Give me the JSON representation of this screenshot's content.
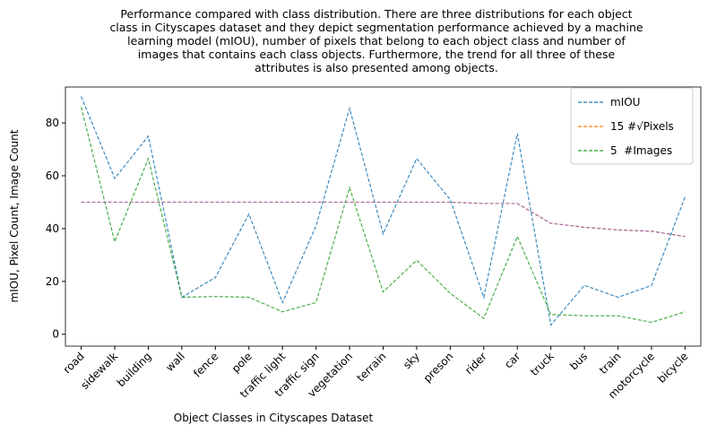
{
  "chart_data": {
    "type": "line",
    "title": [
      "Performance compared with class distribution. There are three distributions for each object",
      "class in Cityscapes dataset and they depict segmentation performance achieved by a machine",
      "learning model (mIOU), number of pixels that belong to each object class and number of",
      "images that contains each class objects. Furthermore, the trend for all three of these",
      "attributes is also presented among objects."
    ],
    "xlabel": "Object Classes in Cityscapes Dataset",
    "ylabel": "mIOU, Pixel Count, Image Count",
    "categories": [
      "road",
      "sidewalk",
      "building",
      "wall",
      "fence",
      "pole",
      "traffic light",
      "traffic sign",
      "vegetation",
      "terrain",
      "sky",
      "preson",
      "rider",
      "car",
      "truck",
      "bus",
      "train",
      "motorcycle",
      "bicycle"
    ],
    "series": [
      {
        "name": "mIOU",
        "color": "#1f77b4",
        "values": [
          90,
          59,
          75,
          14,
          21.5,
          45.5,
          12,
          41,
          85.5,
          38,
          66.5,
          51,
          14,
          76,
          3.5,
          18.5,
          14,
          18.5,
          52
        ]
      },
      {
        "name": "15 #√Pixels",
        "color": "#ff7f0e",
        "values": [
          50,
          50,
          50,
          50,
          50,
          50,
          50,
          50,
          50,
          50,
          50,
          50,
          49.5,
          49.5,
          42,
          40.5,
          39.5,
          39,
          37
        ]
      },
      {
        "name": "5  #Images",
        "color": "#2ca02c",
        "values": [
          86,
          35,
          66.5,
          14,
          14.3,
          14,
          8.5,
          12,
          55.5,
          16,
          28,
          15.5,
          6,
          37,
          7.5,
          7,
          7,
          4.5,
          8.5
        ]
      },
      {
        "color": "#9467bd",
        "values": [
          50,
          50,
          50,
          50,
          50,
          50,
          50,
          50,
          50,
          50,
          50,
          50,
          49.5,
          49.5,
          42,
          40.5,
          39.5,
          39,
          37
        ]
      }
    ],
    "ylim": [
      -4.5,
      93.6
    ],
    "yticks": [
      0,
      20,
      40,
      60,
      80
    ],
    "legend": "upper right"
  }
}
